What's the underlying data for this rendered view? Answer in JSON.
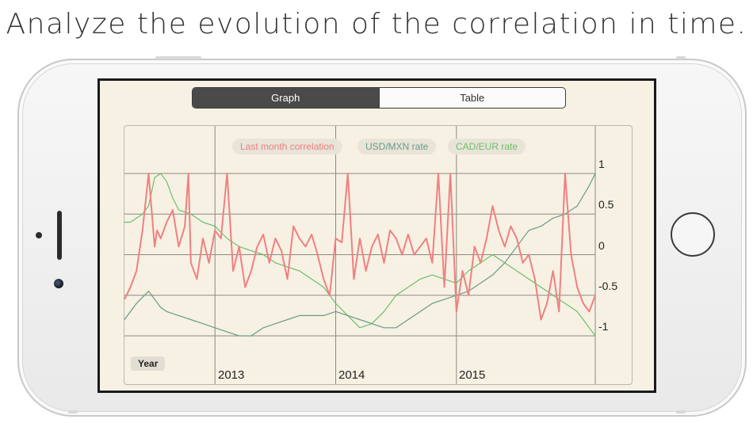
{
  "headline": "Analyze the evolution of the correlation in time.",
  "tabs": [
    {
      "label": "Graph",
      "active": true
    },
    {
      "label": "Table",
      "active": false
    }
  ],
  "legend": [
    {
      "label": "Last month correlation",
      "color": "#f08080"
    },
    {
      "label": "USD/MXN rate",
      "color": "#6a9a88"
    },
    {
      "label": "CAD/EUR rate",
      "color": "#6cbf6c"
    }
  ],
  "range_button": "Year",
  "chart_data": {
    "type": "line",
    "y_ticks": [
      "1",
      "0.5",
      "0",
      "-0.5",
      "-1"
    ],
    "ylim": [
      -1,
      1
    ],
    "x_ticks": [
      "2013",
      "2014",
      "2015"
    ],
    "xlim": [
      2012.25,
      2016.15
    ],
    "grid": true,
    "series": [
      {
        "name": "Last month correlation",
        "color": "#f08080",
        "x": [
          2012.25,
          2012.3,
          2012.35,
          2012.4,
          2012.45,
          2012.5,
          2012.52,
          2012.55,
          2012.6,
          2012.65,
          2012.7,
          2012.75,
          2012.78,
          2012.8,
          2012.85,
          2012.9,
          2012.95,
          2013.0,
          2013.05,
          2013.1,
          2013.15,
          2013.2,
          2013.25,
          2013.3,
          2013.35,
          2013.4,
          2013.45,
          2013.5,
          2013.55,
          2013.6,
          2013.65,
          2013.7,
          2013.75,
          2013.8,
          2013.85,
          2013.9,
          2013.95,
          2014.0,
          2014.05,
          2014.1,
          2014.15,
          2014.2,
          2014.25,
          2014.3,
          2014.35,
          2014.4,
          2014.45,
          2014.5,
          2014.55,
          2014.6,
          2014.65,
          2014.7,
          2014.75,
          2014.8,
          2014.85,
          2014.9,
          2014.95,
          2015.0,
          2015.05,
          2015.1,
          2015.15,
          2015.2,
          2015.25,
          2015.3,
          2015.35,
          2015.4,
          2015.45,
          2015.5,
          2015.55,
          2015.6,
          2015.65,
          2015.7,
          2015.75,
          2015.8,
          2015.85,
          2015.9,
          2015.95,
          2016.0,
          2016.05,
          2016.1,
          2016.15
        ],
        "y": [
          -0.55,
          -0.4,
          -0.2,
          0.3,
          1.0,
          0.1,
          0.3,
          0.2,
          0.4,
          0.55,
          0.1,
          0.35,
          1.0,
          -0.1,
          -0.3,
          0.2,
          -0.1,
          0.3,
          0.2,
          1.0,
          -0.2,
          0.1,
          -0.4,
          -0.2,
          0.1,
          0.25,
          -0.1,
          0.2,
          0.05,
          -0.3,
          0.35,
          0.2,
          0.1,
          0.25,
          0.0,
          -0.3,
          -0.5,
          0.2,
          0.15,
          1.0,
          -0.3,
          0.2,
          -0.2,
          0.1,
          0.25,
          -0.1,
          0.3,
          0.2,
          0.0,
          0.25,
          0.0,
          0.1,
          0.2,
          -0.1,
          1.0,
          -0.4,
          1.0,
          -0.7,
          -0.2,
          -0.5,
          0.1,
          -0.1,
          0.2,
          0.6,
          0.3,
          0.1,
          0.35,
          0.2,
          -0.1,
          0.0,
          -0.3,
          -0.8,
          -0.6,
          -0.2,
          -0.7,
          1.0,
          0.0,
          -0.4,
          -0.6,
          -0.7,
          -0.5
        ]
      },
      {
        "name": "USD/MXN rate",
        "color": "#6a9a88",
        "x": [
          2012.25,
          2012.35,
          2012.45,
          2012.55,
          2012.6,
          2012.7,
          2012.8,
          2012.9,
          2013.0,
          2013.1,
          2013.2,
          2013.3,
          2013.4,
          2013.5,
          2013.6,
          2013.7,
          2013.8,
          2013.9,
          2014.0,
          2014.1,
          2014.2,
          2014.3,
          2014.4,
          2014.5,
          2014.6,
          2014.7,
          2014.8,
          2014.9,
          2015.0,
          2015.1,
          2015.2,
          2015.3,
          2015.4,
          2015.5,
          2015.6,
          2015.7,
          2015.8,
          2015.9,
          2016.0,
          2016.1,
          2016.15
        ],
        "y": [
          -0.8,
          -0.6,
          -0.45,
          -0.65,
          -0.7,
          -0.75,
          -0.8,
          -0.85,
          -0.9,
          -0.95,
          -1.0,
          -1.0,
          -0.9,
          -0.85,
          -0.8,
          -0.75,
          -0.75,
          -0.75,
          -0.7,
          -0.75,
          -0.8,
          -0.85,
          -0.9,
          -0.9,
          -0.8,
          -0.7,
          -0.6,
          -0.55,
          -0.5,
          -0.45,
          -0.35,
          -0.25,
          -0.1,
          0.1,
          0.3,
          0.35,
          0.45,
          0.5,
          0.6,
          0.85,
          1.0
        ]
      },
      {
        "name": "CAD/EUR rate",
        "color": "#6cbf6c",
        "x": [
          2012.25,
          2012.3,
          2012.35,
          2012.4,
          2012.45,
          2012.5,
          2012.55,
          2012.6,
          2012.65,
          2012.7,
          2012.8,
          2012.9,
          2013.0,
          2013.1,
          2013.2,
          2013.3,
          2013.4,
          2013.5,
          2013.6,
          2013.7,
          2013.8,
          2013.9,
          2014.0,
          2014.1,
          2014.2,
          2014.3,
          2014.4,
          2014.5,
          2014.6,
          2014.7,
          2014.8,
          2014.9,
          2015.0,
          2015.1,
          2015.2,
          2015.3,
          2015.4,
          2015.5,
          2015.6,
          2015.7,
          2015.8,
          2015.9,
          2016.0,
          2016.05,
          2016.1,
          2016.15
        ],
        "y": [
          0.4,
          0.4,
          0.45,
          0.5,
          0.6,
          0.95,
          1.0,
          0.9,
          0.7,
          0.55,
          0.5,
          0.4,
          0.35,
          0.2,
          0.1,
          0.05,
          0.0,
          -0.1,
          -0.15,
          -0.2,
          -0.3,
          -0.4,
          -0.6,
          -0.75,
          -0.9,
          -0.85,
          -0.7,
          -0.5,
          -0.4,
          -0.3,
          -0.25,
          -0.3,
          -0.35,
          -0.2,
          -0.1,
          0.0,
          -0.1,
          -0.2,
          -0.3,
          -0.4,
          -0.5,
          -0.6,
          -0.7,
          -0.8,
          -0.9,
          -1.0
        ]
      }
    ]
  }
}
